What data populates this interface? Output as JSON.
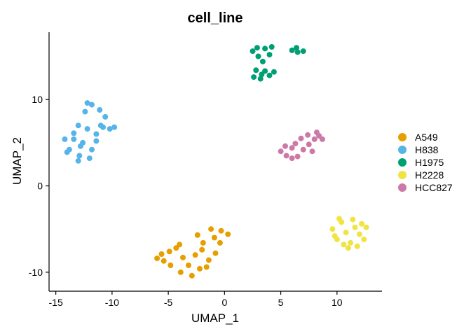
{
  "chart_data": {
    "type": "scatter",
    "title": "cell_line",
    "xlabel": "UMAP_1",
    "ylabel": "UMAP_2",
    "xlim": [
      -15.6,
      14.0
    ],
    "ylim": [
      -12.2,
      17.8
    ],
    "xticks": [
      {
        "value": -15,
        "label": "-15"
      },
      {
        "value": -10,
        "label": "-10"
      },
      {
        "value": -5,
        "label": "-5"
      },
      {
        "value": 0,
        "label": "0"
      },
      {
        "value": 5,
        "label": "5"
      },
      {
        "value": 10,
        "label": "10"
      }
    ],
    "yticks": [
      {
        "value": -10,
        "label": "-10"
      },
      {
        "value": 0,
        "label": "0"
      },
      {
        "value": 10,
        "label": "10"
      }
    ],
    "grid": false,
    "legend_position": "right",
    "series": [
      {
        "name": "A549",
        "color": "#E69F00",
        "points": [
          [
            -6.0,
            -8.4
          ],
          [
            -5.4,
            -8.7
          ],
          [
            -4.9,
            -7.6
          ],
          [
            -4.3,
            -7.2
          ],
          [
            -3.7,
            -8.3
          ],
          [
            -3.2,
            -9.2
          ],
          [
            -2.6,
            -8.0
          ],
          [
            -2.0,
            -7.4
          ],
          [
            -1.4,
            -8.6
          ],
          [
            -0.8,
            -7.8
          ],
          [
            -4.8,
            -9.2
          ],
          [
            -3.9,
            -10.0
          ],
          [
            -2.9,
            -10.4
          ],
          [
            -2.2,
            -9.6
          ],
          [
            -1.6,
            -9.4
          ],
          [
            -1.9,
            -6.6
          ],
          [
            -2.4,
            -5.7
          ],
          [
            -1.2,
            -5.0
          ],
          [
            -0.3,
            -5.2
          ],
          [
            0.3,
            -5.6
          ],
          [
            -0.4,
            -6.6
          ],
          [
            -0.9,
            -6.0
          ],
          [
            -4.0,
            -6.8
          ],
          [
            -5.6,
            -7.9
          ]
        ]
      },
      {
        "name": "H838",
        "color": "#56B4E9",
        "points": [
          [
            -14.2,
            5.4
          ],
          [
            -13.8,
            4.2
          ],
          [
            -13.4,
            6.1
          ],
          [
            -12.9,
            3.5
          ],
          [
            -12.6,
            5.0
          ],
          [
            -12.2,
            6.6
          ],
          [
            -11.8,
            4.2
          ],
          [
            -11.4,
            6.0
          ],
          [
            -11.0,
            7.0
          ],
          [
            -12.4,
            8.6
          ],
          [
            -11.8,
            9.4
          ],
          [
            -11.1,
            8.8
          ],
          [
            -10.6,
            8.0
          ],
          [
            -10.2,
            6.6
          ],
          [
            -9.8,
            6.8
          ],
          [
            -13.0,
            2.9
          ],
          [
            -14.0,
            3.9
          ],
          [
            -13.0,
            7.0
          ],
          [
            -12.8,
            4.6
          ],
          [
            -11.4,
            5.2
          ],
          [
            -10.8,
            6.8
          ],
          [
            -12.2,
            9.6
          ],
          [
            -13.4,
            5.4
          ],
          [
            -12.0,
            3.2
          ]
        ]
      },
      {
        "name": "H1975",
        "color": "#009E73",
        "points": [
          [
            2.5,
            15.6
          ],
          [
            3.0,
            15.0
          ],
          [
            3.6,
            15.9
          ],
          [
            4.2,
            16.1
          ],
          [
            3.4,
            14.4
          ],
          [
            2.8,
            13.4
          ],
          [
            2.6,
            12.6
          ],
          [
            3.3,
            12.9
          ],
          [
            4.0,
            12.8
          ],
          [
            4.4,
            13.2
          ],
          [
            3.6,
            13.3
          ],
          [
            3.2,
            12.4
          ],
          [
            6.0,
            15.7
          ],
          [
            6.5,
            15.5
          ],
          [
            7.0,
            15.6
          ],
          [
            6.4,
            16.0
          ],
          [
            2.9,
            16.0
          ],
          [
            4.0,
            15.2
          ]
        ]
      },
      {
        "name": "H2228",
        "color": "#F0E442",
        "points": [
          [
            9.6,
            -5.0
          ],
          [
            10.0,
            -6.2
          ],
          [
            10.4,
            -4.2
          ],
          [
            10.8,
            -5.4
          ],
          [
            11.2,
            -6.6
          ],
          [
            11.6,
            -4.8
          ],
          [
            12.0,
            -5.6
          ],
          [
            12.4,
            -6.2
          ],
          [
            10.2,
            -3.8
          ],
          [
            11.0,
            -7.2
          ],
          [
            11.8,
            -7.0
          ],
          [
            12.6,
            -4.8
          ],
          [
            9.8,
            -5.8
          ],
          [
            10.6,
            -6.8
          ],
          [
            11.4,
            -3.9
          ],
          [
            12.2,
            -4.4
          ]
        ]
      },
      {
        "name": "HCC827",
        "color": "#CC79A7",
        "points": [
          [
            5.0,
            4.0
          ],
          [
            5.5,
            3.5
          ],
          [
            6.0,
            4.4
          ],
          [
            6.5,
            3.4
          ],
          [
            7.0,
            4.2
          ],
          [
            7.5,
            4.8
          ],
          [
            8.0,
            5.4
          ],
          [
            8.4,
            5.8
          ],
          [
            8.7,
            5.4
          ],
          [
            6.3,
            4.9
          ],
          [
            6.8,
            5.5
          ],
          [
            7.4,
            5.9
          ],
          [
            5.4,
            4.6
          ],
          [
            7.8,
            4.0
          ],
          [
            6.0,
            3.2
          ],
          [
            8.2,
            6.2
          ]
        ]
      }
    ]
  }
}
